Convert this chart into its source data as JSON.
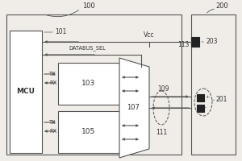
{
  "bg_color": "#f0ede8",
  "line_color": "#555555",
  "box_fill": "#ffffff",
  "box_edge": "#555555",
  "text_color": "#333333",
  "label_100": "100",
  "label_200": "200",
  "label_101": "101",
  "label_103": "103",
  "label_105": "105",
  "label_107": "107",
  "label_109": "109",
  "label_111": "111",
  "label_113": "113",
  "label_201": "201",
  "label_203": "203",
  "label_MCU": "MCU",
  "label_TX": "TX",
  "label_RX": "RX",
  "label_DATABUS": "DATABUS_SEL",
  "label_Vcc": "Vcc"
}
